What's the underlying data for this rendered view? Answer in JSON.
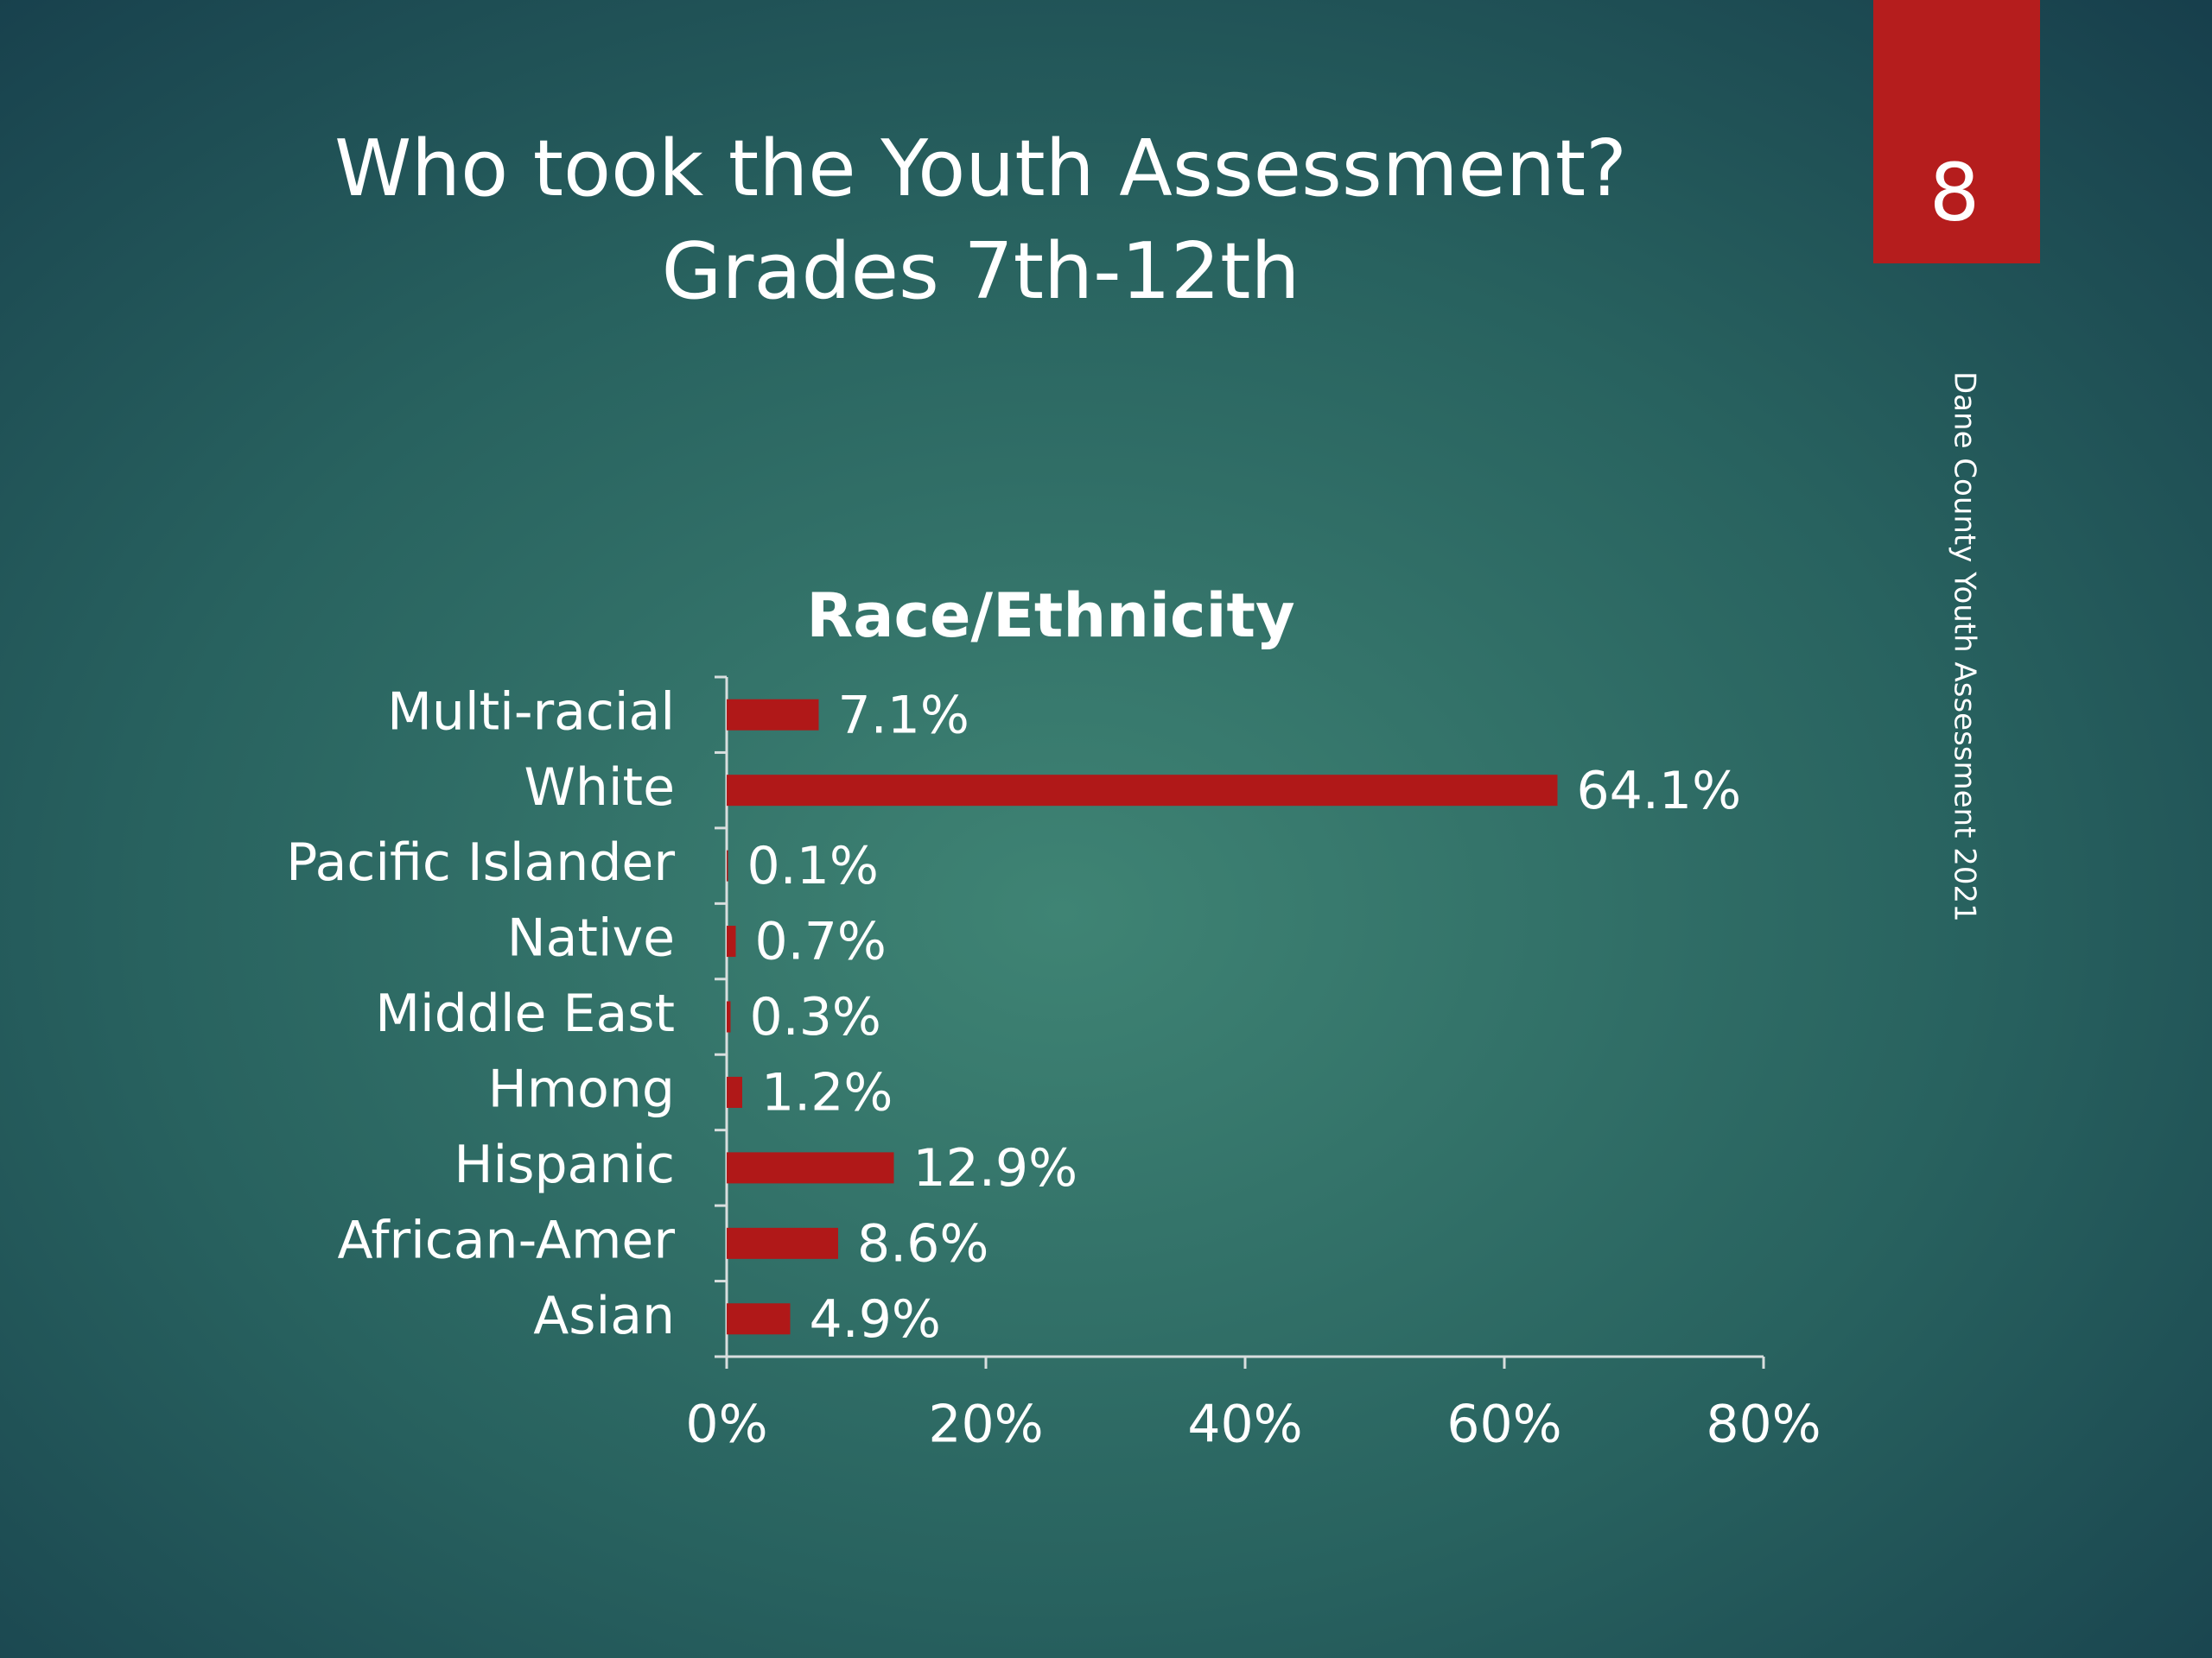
{
  "slide": {
    "title": [
      "Who took the Youth Assessment?",
      "Grades 7th-12th"
    ],
    "page_number": "8",
    "side_note": "Dane County Youth Assessment 2021"
  },
  "chart_data": {
    "type": "hbar",
    "title": "Race/Ethnicity",
    "categories": [
      "Multi-racial",
      "White",
      "Pacific Islander",
      "Native",
      "Middle East",
      "Hmong",
      "Hispanic",
      "African-Amer",
      "Asian"
    ],
    "values": [
      7.1,
      64.1,
      0.1,
      0.7,
      0.3,
      1.2,
      12.9,
      8.6,
      4.9
    ],
    "value_labels": [
      "7.1%",
      "64.1%",
      "0.1%",
      "0.7%",
      "0.3%",
      "1.2%",
      "12.9%",
      "8.6%",
      "4.9%"
    ],
    "color": "#b01818",
    "xlim": [
      0,
      80
    ],
    "xticks": [
      {
        "value": 0,
        "label": "0%"
      },
      {
        "value": 20,
        "label": "20%"
      },
      {
        "value": 40,
        "label": "40%"
      },
      {
        "value": 60,
        "label": "60%"
      },
      {
        "value": 80,
        "label": "80%"
      }
    ],
    "grid": false
  }
}
